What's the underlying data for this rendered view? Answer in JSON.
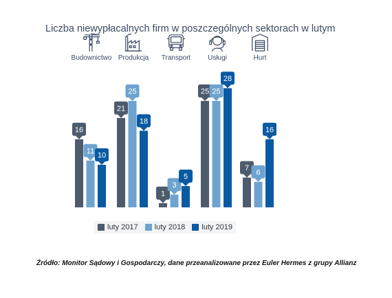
{
  "chart_data": {
    "type": "bar",
    "title": "Liczba niewypłacalnych firm w poszczególnych sektorach w lutym",
    "categories": [
      "Budownictwo",
      "Produkcja",
      "Transport",
      "Usługi",
      "Hurt"
    ],
    "category_icons": [
      "crane-icon",
      "factory-icon",
      "truck-icon",
      "headset-icon",
      "warehouse-icon"
    ],
    "series": [
      {
        "name": "luty 2017",
        "color": "#4d5b6d",
        "values": [
          16,
          21,
          1,
          25,
          7
        ]
      },
      {
        "name": "luty 2018",
        "color": "#6ea3cf",
        "values": [
          11,
          25,
          3,
          25,
          6
        ]
      },
      {
        "name": "luty 2019",
        "color": "#0a5aa3",
        "values": [
          10,
          18,
          5,
          28,
          16
        ]
      }
    ],
    "ylim": [
      0,
      30
    ],
    "grid": false,
    "legend_position": "bottom"
  },
  "source": "Źródło: Monitor Sądowy i Gospodarczy, dane przeanalizowane przez Euler Hermes z grupy Allianz"
}
